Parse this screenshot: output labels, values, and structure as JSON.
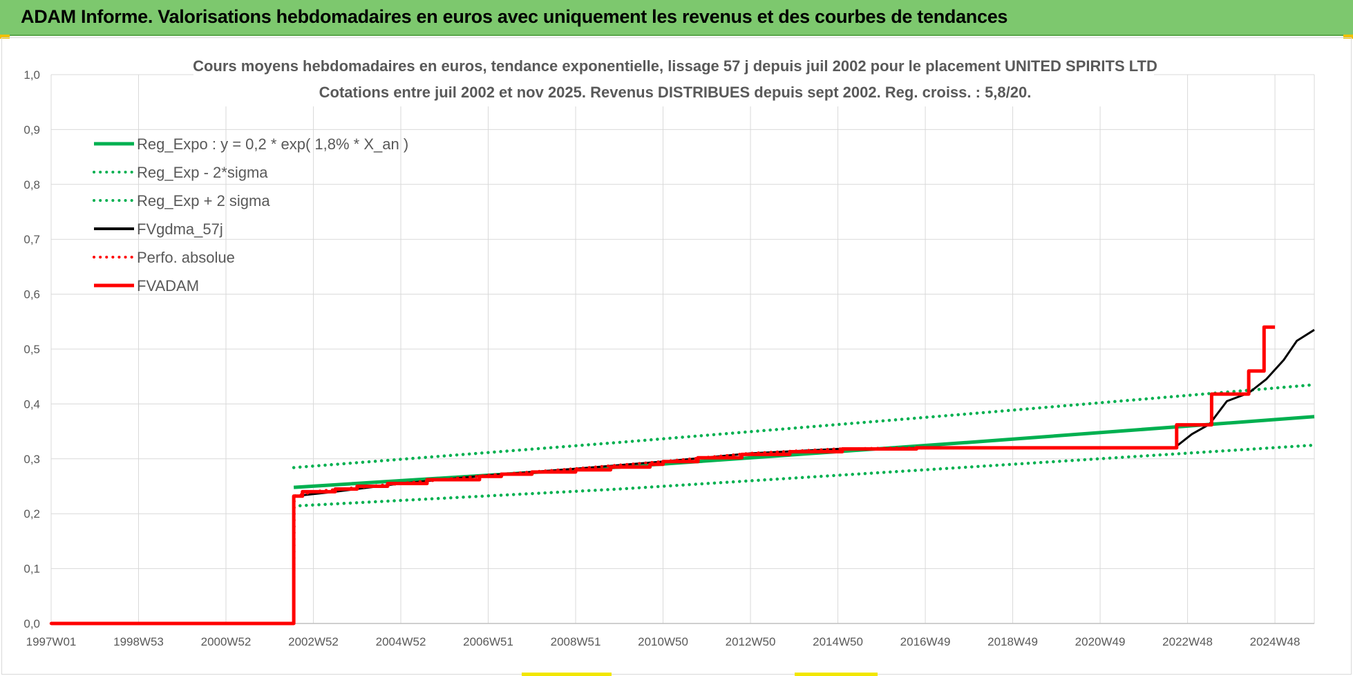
{
  "header": {
    "title": "ADAM Informe. Valorisations hebdomadaires en euros avec uniquement les revenus et des courbes de tendances"
  },
  "colors": {
    "banner": "#7dc86e",
    "reg_expo": "#00b050",
    "fvgdma": "#000000",
    "fvadam": "#ff0000"
  },
  "chart_data": {
    "type": "line",
    "title_lines": [
      "Cours moyens hebdomadaires en euros, tendance exponentielle, lissage 57 j depuis juil 2002 pour le placement UNITED SPIRITS LTD",
      "Cotations entre juil 2002 et nov 2025. Revenus DISTRIBUES depuis sept 2002. Reg. croiss. : 5,8/20."
    ],
    "x_range": [
      1997.0,
      2025.9
    ],
    "ylim": [
      0,
      1
    ],
    "y_ticks": [
      "0,0",
      "0,1",
      "0,2",
      "0,3",
      "0,4",
      "0,5",
      "0,6",
      "0,7",
      "0,8",
      "0,9",
      "1,0"
    ],
    "x_ticks": [
      {
        "label": "1997W01",
        "x": 1997.0
      },
      {
        "label": "1998W53",
        "x": 1999.0
      },
      {
        "label": "2000W52",
        "x": 2001.0
      },
      {
        "label": "2002W52",
        "x": 2003.0
      },
      {
        "label": "2004W52",
        "x": 2005.0
      },
      {
        "label": "2006W51",
        "x": 2007.0
      },
      {
        "label": "2008W51",
        "x": 2009.0
      },
      {
        "label": "2010W50",
        "x": 2011.0
      },
      {
        "label": "2012W50",
        "x": 2013.0
      },
      {
        "label": "2014W50",
        "x": 2015.0
      },
      {
        "label": "2016W49",
        "x": 2017.0
      },
      {
        "label": "2018W49",
        "x": 2019.0
      },
      {
        "label": "2020W49",
        "x": 2021.0
      },
      {
        "label": "2022W48",
        "x": 2023.0
      },
      {
        "label": "2024W48",
        "x": 2025.0
      }
    ],
    "grid": true,
    "legend_position": "top-left",
    "series": [
      {
        "name": "Reg_Expo : y = 0,2 * exp( 1,8% *  X_an )",
        "style": "solid-thick",
        "color": "#00b050",
        "points": [
          [
            2002.55,
            0.248
          ],
          [
            2010.0,
            0.285
          ],
          [
            2018.0,
            0.33
          ],
          [
            2025.9,
            0.377
          ]
        ]
      },
      {
        "name": "Reg_Exp - 2*sigma",
        "style": "dotted",
        "color": "#00b050",
        "points": [
          [
            2002.55,
            0.214
          ],
          [
            2010.0,
            0.245
          ],
          [
            2018.0,
            0.285
          ],
          [
            2025.9,
            0.325
          ]
        ]
      },
      {
        "name": "Reg_Exp + 2 sigma",
        "style": "dotted",
        "color": "#00b050",
        "points": [
          [
            2002.55,
            0.284
          ],
          [
            2010.0,
            0.33
          ],
          [
            2018.0,
            0.382
          ],
          [
            2025.9,
            0.435
          ]
        ]
      },
      {
        "name": "FVgdma_57j",
        "style": "solid",
        "color": "#000000",
        "points": [
          [
            1997.0,
            0.0
          ],
          [
            2002.55,
            0.0
          ],
          [
            2002.56,
            0.232
          ],
          [
            2003.5,
            0.24
          ],
          [
            2005.0,
            0.255
          ],
          [
            2007.0,
            0.27
          ],
          [
            2009.0,
            0.282
          ],
          [
            2011.0,
            0.295
          ],
          [
            2013.0,
            0.31
          ],
          [
            2015.0,
            0.318
          ],
          [
            2017.0,
            0.32
          ],
          [
            2022.7,
            0.32
          ],
          [
            2023.1,
            0.345
          ],
          [
            2023.5,
            0.363
          ],
          [
            2023.9,
            0.405
          ],
          [
            2024.4,
            0.42
          ],
          [
            2024.8,
            0.445
          ],
          [
            2025.2,
            0.48
          ],
          [
            2025.5,
            0.515
          ],
          [
            2025.9,
            0.535
          ]
        ]
      },
      {
        "name": "Perfo. absolue",
        "style": "dotted",
        "color": "#ff0000",
        "points": [
          [
            1997.0,
            0.0
          ],
          [
            2002.55,
            0.0
          ],
          [
            2002.56,
            0.232
          ],
          [
            2003.0,
            0.24
          ],
          [
            2005.0,
            0.255
          ],
          [
            2007.0,
            0.27
          ],
          [
            2009.0,
            0.282
          ],
          [
            2011.0,
            0.295
          ],
          [
            2013.0,
            0.31
          ],
          [
            2015.0,
            0.318
          ],
          [
            2017.0,
            0.32
          ],
          [
            2022.75,
            0.32
          ],
          [
            2022.75,
            0.362
          ],
          [
            2023.55,
            0.362
          ],
          [
            2023.55,
            0.418
          ],
          [
            2024.4,
            0.418
          ],
          [
            2024.4,
            0.46
          ],
          [
            2024.75,
            0.46
          ],
          [
            2024.75,
            0.54
          ],
          [
            2025.0,
            0.54
          ]
        ]
      },
      {
        "name": "FVADAM",
        "style": "step-thick",
        "color": "#ff0000",
        "points": [
          [
            1997.0,
            0.0
          ],
          [
            2002.55,
            0.0
          ],
          [
            2002.55,
            0.232
          ],
          [
            2002.75,
            0.232
          ],
          [
            2002.75,
            0.24
          ],
          [
            2003.5,
            0.24
          ],
          [
            2003.5,
            0.245
          ],
          [
            2004.0,
            0.245
          ],
          [
            2004.0,
            0.25
          ],
          [
            2004.7,
            0.25
          ],
          [
            2004.7,
            0.255
          ],
          [
            2005.6,
            0.255
          ],
          [
            2005.6,
            0.262
          ],
          [
            2006.8,
            0.262
          ],
          [
            2006.8,
            0.268
          ],
          [
            2007.3,
            0.268
          ],
          [
            2007.3,
            0.272
          ],
          [
            2008.0,
            0.272
          ],
          [
            2008.0,
            0.276
          ],
          [
            2009.0,
            0.276
          ],
          [
            2009.0,
            0.28
          ],
          [
            2009.8,
            0.28
          ],
          [
            2009.8,
            0.285
          ],
          [
            2010.7,
            0.285
          ],
          [
            2010.7,
            0.29
          ],
          [
            2011.0,
            0.29
          ],
          [
            2011.0,
            0.295
          ],
          [
            2011.8,
            0.295
          ],
          [
            2011.8,
            0.302
          ],
          [
            2012.8,
            0.302
          ],
          [
            2012.8,
            0.308
          ],
          [
            2013.9,
            0.308
          ],
          [
            2013.9,
            0.313
          ],
          [
            2015.1,
            0.313
          ],
          [
            2015.1,
            0.318
          ],
          [
            2016.8,
            0.318
          ],
          [
            2016.8,
            0.32
          ],
          [
            2022.75,
            0.32
          ],
          [
            2022.75,
            0.362
          ],
          [
            2023.55,
            0.362
          ],
          [
            2023.55,
            0.418
          ],
          [
            2024.4,
            0.418
          ],
          [
            2024.4,
            0.46
          ],
          [
            2024.75,
            0.46
          ],
          [
            2024.75,
            0.54
          ],
          [
            2025.0,
            0.54
          ]
        ]
      }
    ]
  }
}
